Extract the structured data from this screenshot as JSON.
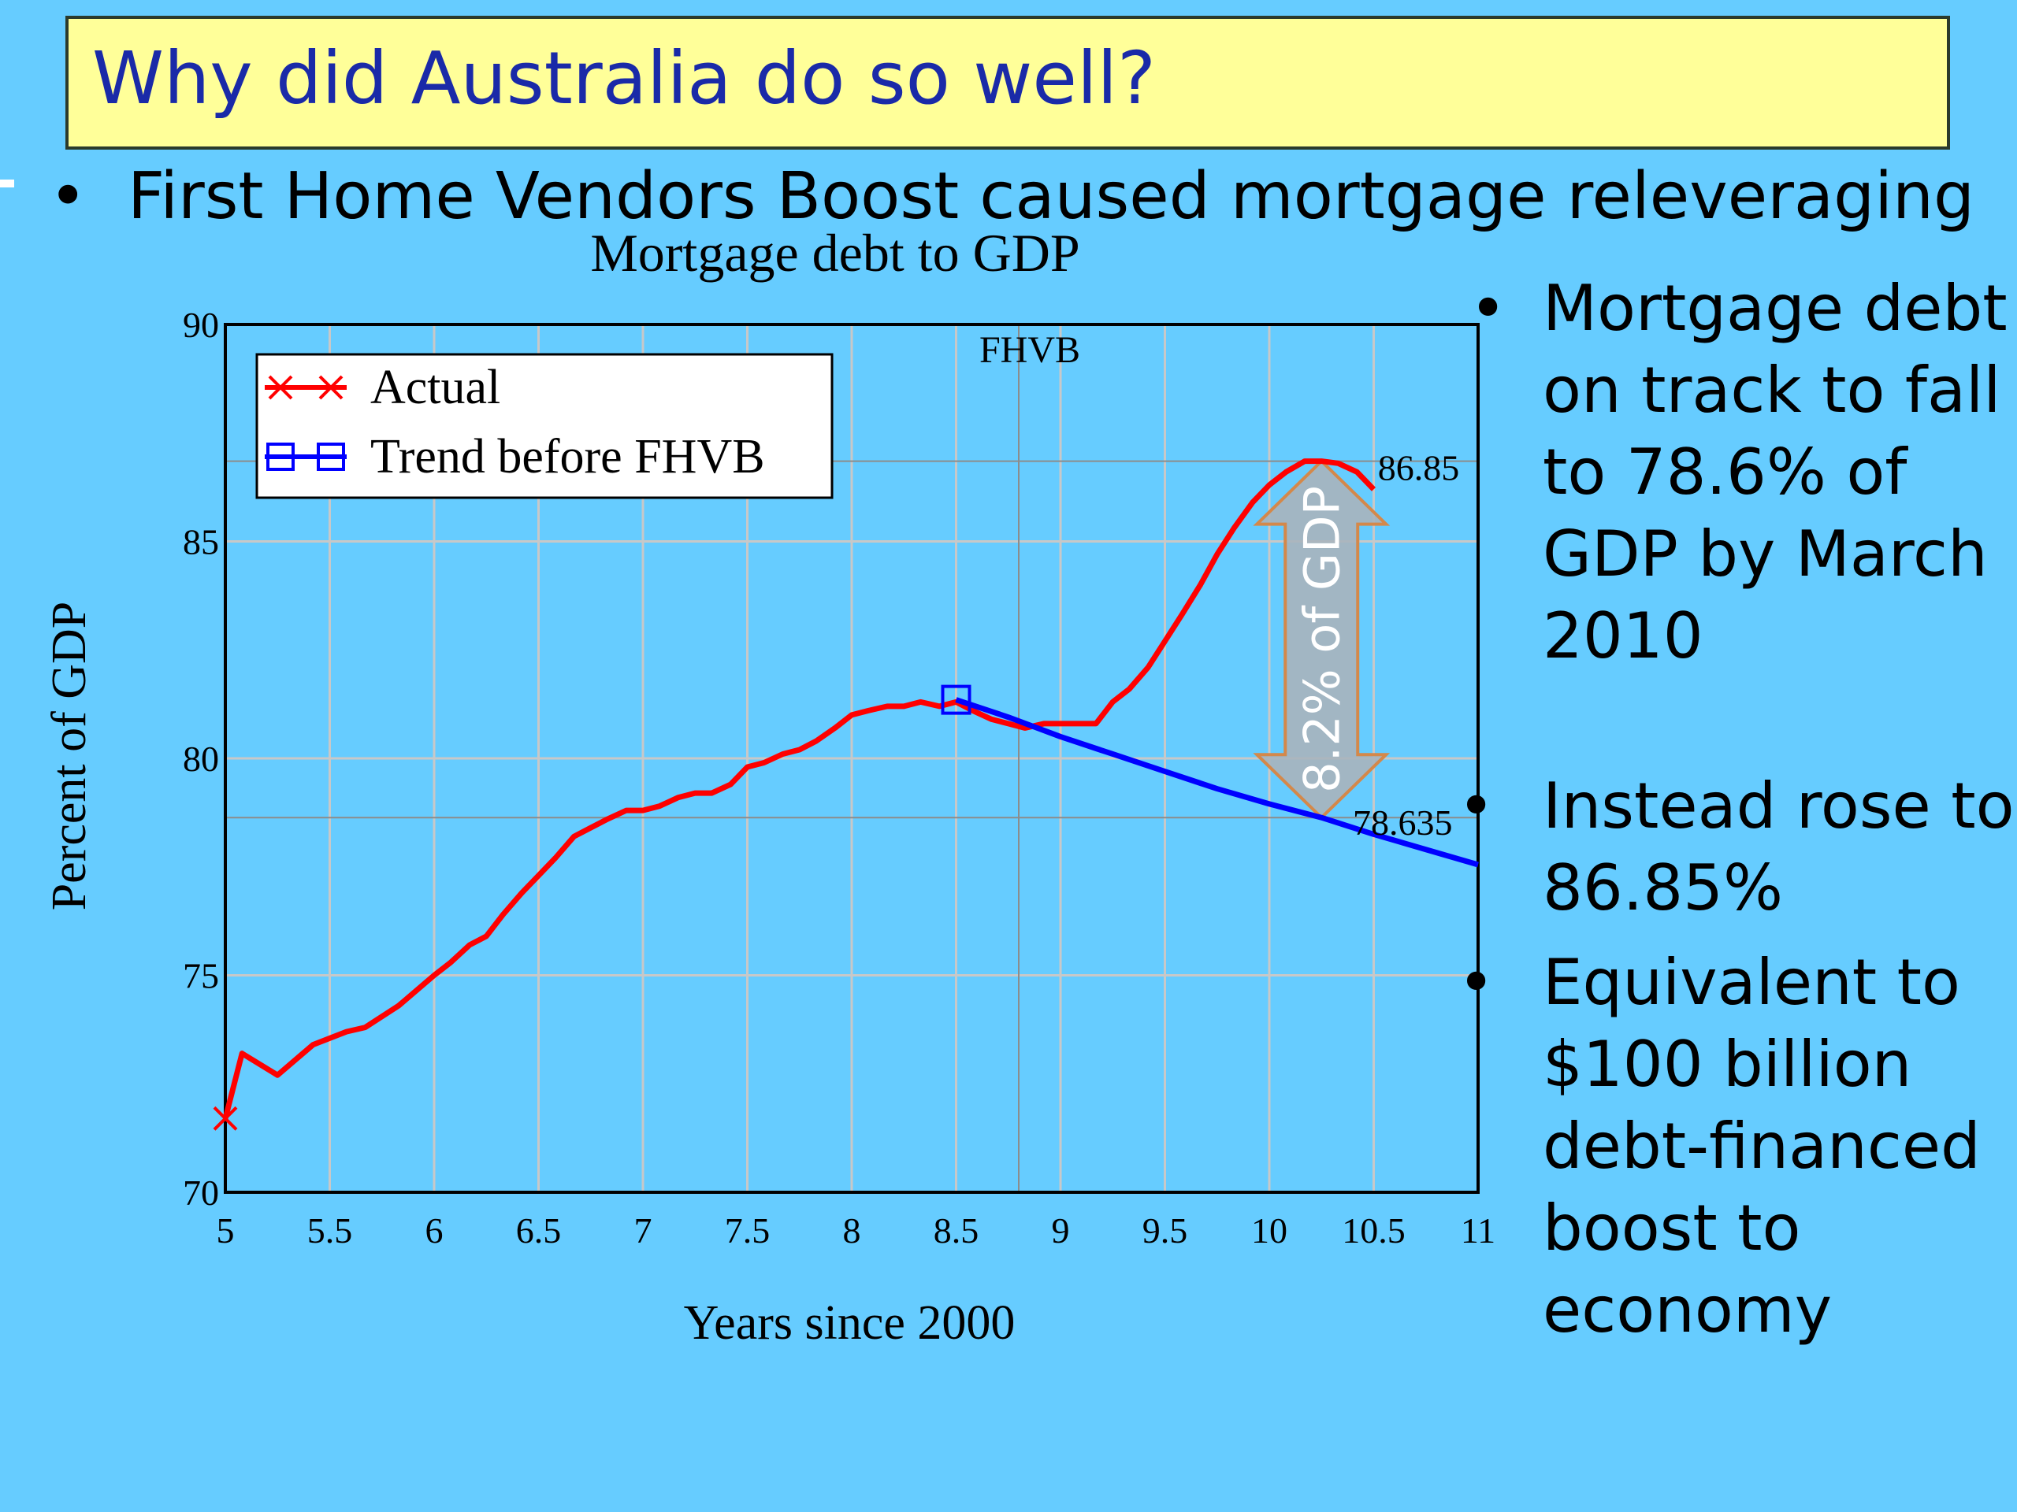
{
  "slide": {
    "title": "Why did Australia do so well?",
    "bullet": "First Home Vendors Boost caused mortgage releveraging",
    "bullet_marker": "•",
    "side_bullets": [
      "Mortgage debt on track to fall to 78.6% of GDP by March 2010",
      "Instead rose to 86.85%",
      "Equivalent to $100 billion debt-financed boost to economy"
    ]
  },
  "colors": {
    "background": "#66ccff",
    "title_fill": "#ffff99",
    "title_text": "#1a2aa8",
    "actual": "#ff0000",
    "trend": "#0000ff",
    "gap_arrow": "#d4884a"
  },
  "chart_data": {
    "type": "line",
    "title": "Mortgage debt to GDP",
    "xlabel": "Years since 2000",
    "ylabel": "Percent of GDP",
    "xlim": [
      5,
      11
    ],
    "ylim": [
      70,
      90
    ],
    "xticks": [
      5,
      5.5,
      6,
      6.5,
      7,
      7.5,
      8,
      8.5,
      9,
      9.5,
      10,
      10.5,
      11
    ],
    "xtick_labels": [
      "5",
      "5.5",
      "6",
      "6.5",
      "7",
      "7.5",
      "8",
      "8.5",
      "9",
      "9.5",
      "10",
      "10.5",
      "11"
    ],
    "yticks": [
      70,
      75,
      80,
      85,
      90
    ],
    "ytick_labels": [
      "70",
      "75",
      "80",
      "85",
      "90"
    ],
    "grid": true,
    "legend_position": "top-left",
    "series": [
      {
        "name": "Actual",
        "marker": "x",
        "x": [
          5.0,
          5.08,
          5.25,
          5.42,
          5.58,
          5.67,
          5.83,
          6.0,
          6.08,
          6.17,
          6.25,
          6.33,
          6.42,
          6.5,
          6.58,
          6.67,
          6.75,
          6.83,
          6.92,
          7.0,
          7.08,
          7.17,
          7.25,
          7.33,
          7.42,
          7.5,
          7.58,
          7.67,
          7.75,
          7.83,
          7.92,
          8.0,
          8.08,
          8.17,
          8.25,
          8.33,
          8.42,
          8.5,
          8.58,
          8.67,
          8.75,
          8.83,
          8.92,
          9.0,
          9.08,
          9.17,
          9.25,
          9.33,
          9.42,
          9.5,
          9.58,
          9.67,
          9.75,
          9.83,
          9.92,
          10.0,
          10.08,
          10.17,
          10.25,
          10.33,
          10.42,
          10.5
        ],
        "y": [
          71.7,
          73.2,
          72.7,
          73.4,
          73.7,
          73.8,
          74.3,
          75.0,
          75.3,
          75.7,
          75.9,
          76.4,
          76.9,
          77.3,
          77.7,
          78.2,
          78.4,
          78.6,
          78.8,
          78.8,
          78.9,
          79.1,
          79.2,
          79.2,
          79.4,
          79.8,
          79.9,
          80.1,
          80.2,
          80.4,
          80.7,
          81.0,
          81.1,
          81.2,
          81.2,
          81.3,
          81.2,
          81.3,
          81.1,
          80.9,
          80.8,
          80.7,
          80.8,
          80.8,
          80.8,
          80.8,
          81.3,
          81.6,
          82.1,
          82.7,
          83.3,
          84.0,
          84.7,
          85.3,
          85.9,
          86.3,
          86.6,
          86.85,
          86.85,
          86.8,
          86.6,
          86.2
        ]
      },
      {
        "name": "Trend before FHVB",
        "marker": "square",
        "x": [
          8.5,
          8.75,
          9.0,
          9.25,
          9.5,
          9.75,
          10.0,
          10.25,
          10.5,
          10.75,
          11.0
        ],
        "y": [
          81.35,
          80.95,
          80.5,
          80.1,
          79.7,
          79.3,
          78.95,
          78.635,
          78.25,
          77.9,
          77.55
        ]
      }
    ],
    "annotations": {
      "fhvb_label": "FHVB",
      "fhvb_x": 8.8,
      "peak_label": "86.85",
      "peak_value": 86.85,
      "trend_label": "78.635",
      "trend_value": 78.635,
      "gap_label": "8.2% of GDP",
      "gap_x": 10.25,
      "reference_line_ys": [
        86.85,
        78.635
      ]
    }
  }
}
